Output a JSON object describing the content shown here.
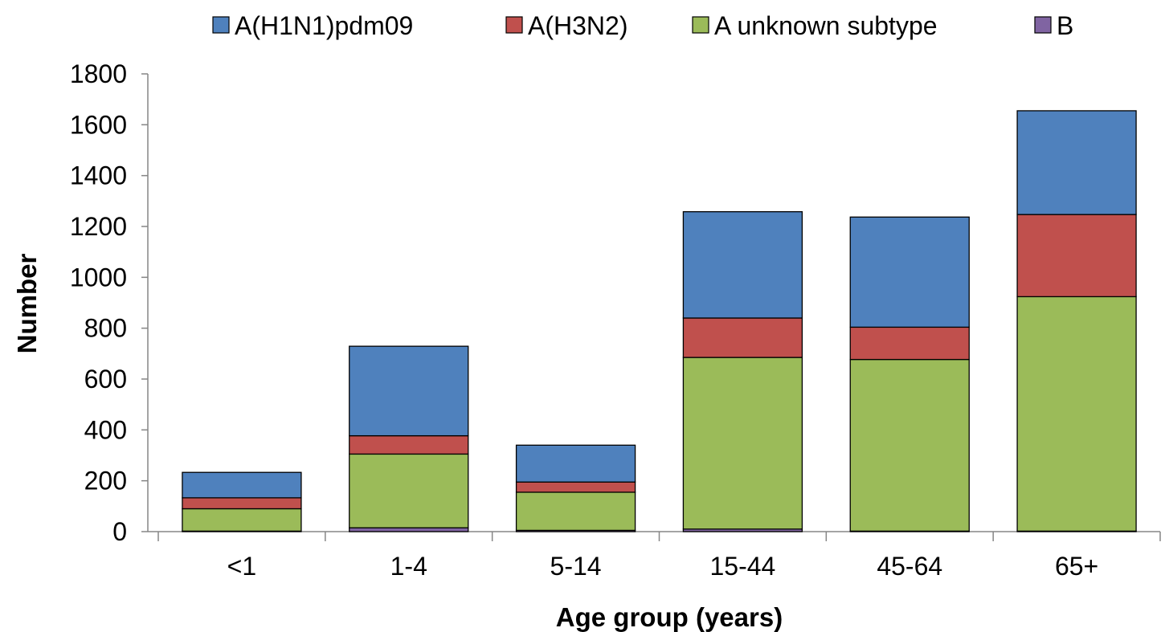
{
  "chart_data": {
    "type": "bar",
    "stacked": true,
    "categories": [
      "<1",
      "1-4",
      "5-14",
      "15-44",
      "45-64",
      "65+"
    ],
    "series": [
      {
        "name": "B",
        "color": "#8064A2",
        "values": [
          2,
          15,
          5,
          10,
          2,
          2
        ]
      },
      {
        "name": "A unknown subtype",
        "color": "#9BBB59",
        "values": [
          88,
          290,
          150,
          675,
          675,
          922
        ]
      },
      {
        "name": "A(H3N2)",
        "color": "#C0504D",
        "values": [
          43,
          72,
          40,
          155,
          127,
          323
        ]
      },
      {
        "name": "A(H1N1)pdm09",
        "color": "#4F81BD",
        "values": [
          100,
          352,
          145,
          418,
          433,
          408
        ]
      }
    ],
    "legend_order": [
      "A(H1N1)pdm09",
      "A(H3N2)",
      "A unknown subtype",
      "B"
    ],
    "legend_position": "top",
    "title": "",
    "xlabel": "Age group (years)",
    "ylabel": "Number",
    "ylim": [
      0,
      1800
    ],
    "yticks": [
      "0",
      "200",
      "400",
      "600",
      "800",
      "1000",
      "1200",
      "1400",
      "1600",
      "1800"
    ],
    "grid": false
  }
}
